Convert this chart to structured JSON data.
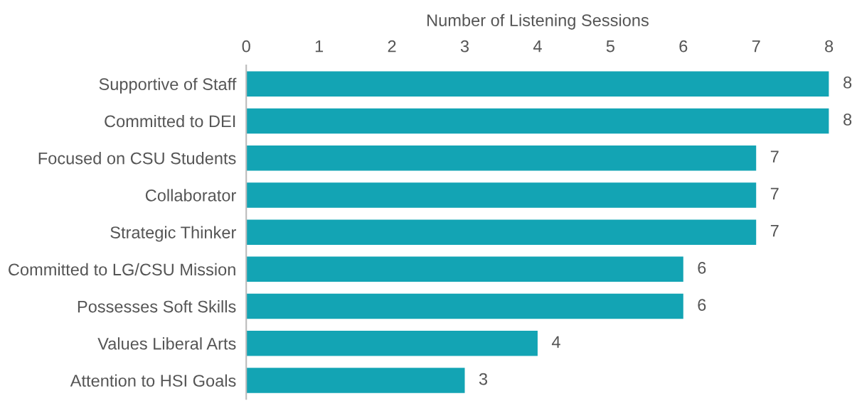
{
  "chart_data": {
    "type": "bar",
    "orientation": "horizontal",
    "xlabel": "Number of Listening Sessions",
    "categories": [
      "Supportive of Staff",
      "Committed to DEI",
      "Focused on CSU Students",
      "Collaborator",
      "Strategic Thinker",
      "Committed to LG/CSU Mission",
      "Possesses Soft Skills",
      "Values Liberal Arts",
      "Attention to HSI Goals"
    ],
    "values": [
      8,
      8,
      7,
      7,
      7,
      6,
      6,
      4,
      3
    ],
    "color": "#13a4b4",
    "xlim": [
      0,
      8
    ],
    "xticks": [
      0,
      1,
      2,
      3,
      4,
      5,
      6,
      7,
      8
    ],
    "data_labels": true,
    "grid": false,
    "legend": false
  }
}
